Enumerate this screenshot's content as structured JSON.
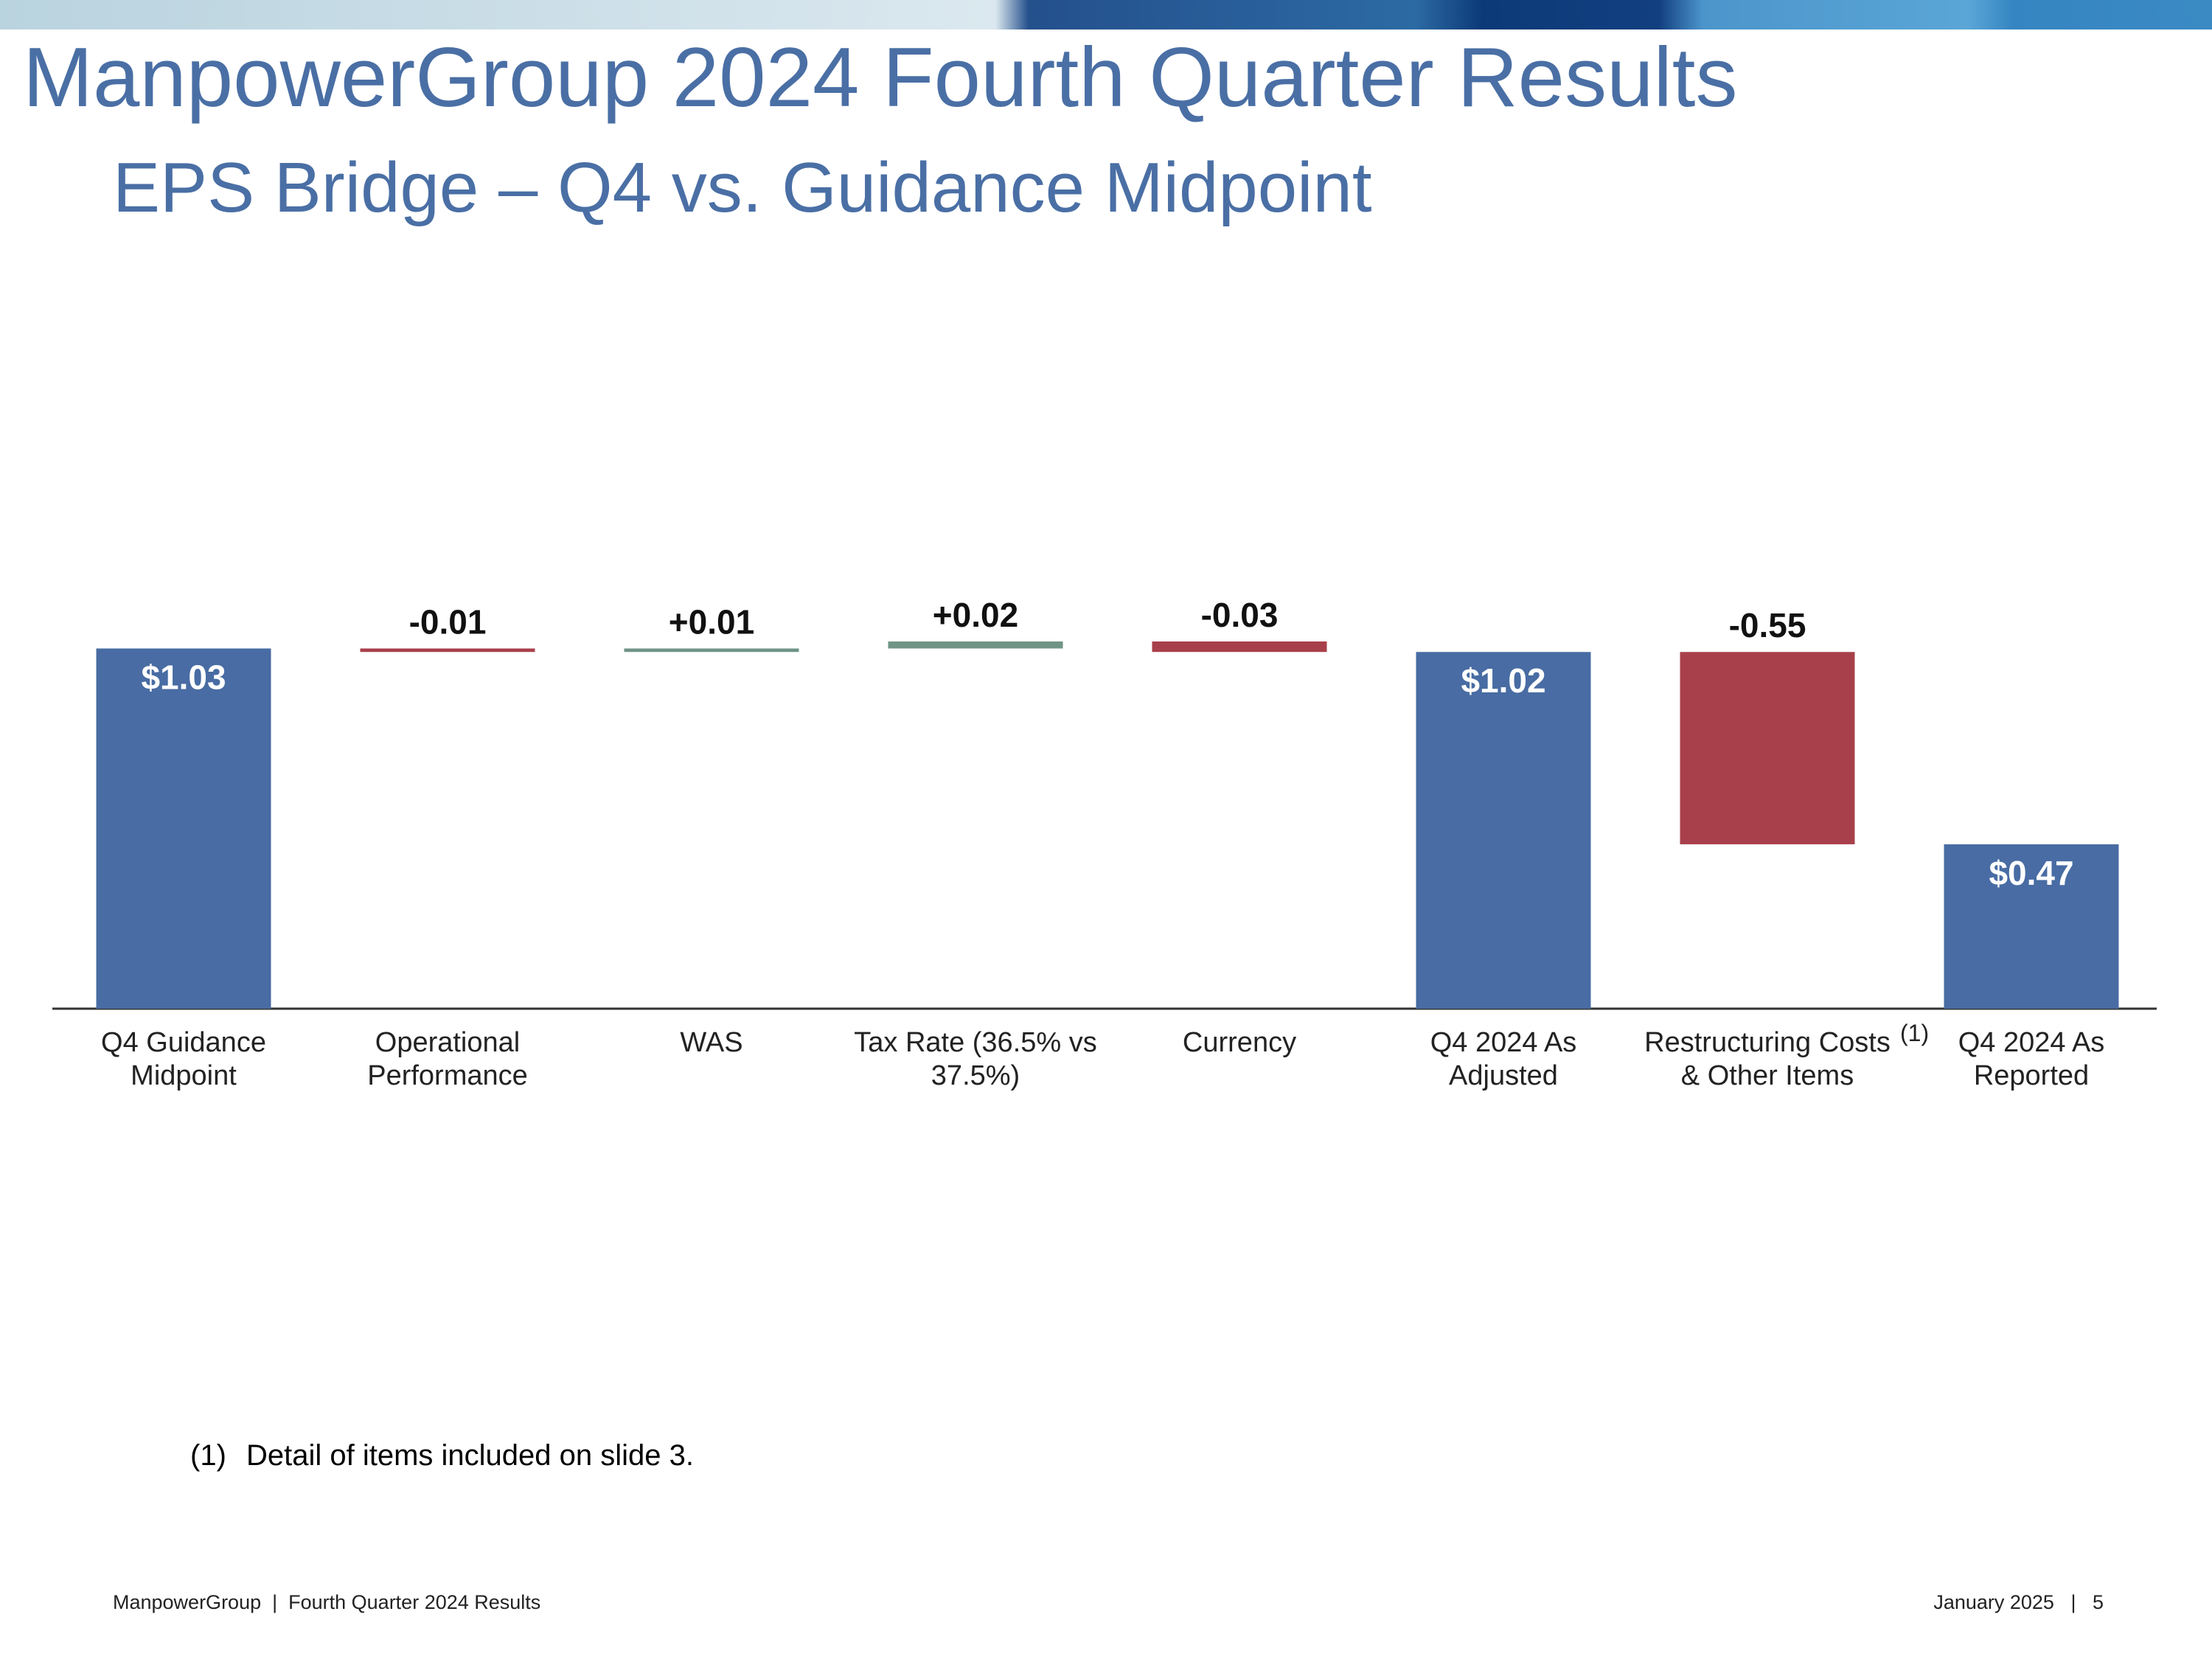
{
  "chart_data": {
    "type": "waterfall",
    "title": "ManpowerGroup 2024 Fourth Quarter Results",
    "subtitle": "EPS Bridge – Q4 vs. Guidance Midpoint",
    "categories": [
      "Q4 Guidance Midpoint",
      "Operational Performance",
      "WAS",
      "Tax Rate (36.5% vs 37.5%)",
      "Currency",
      "Q4 2024 As Adjusted",
      "Restructuring Costs & Other Items",
      "Q4 2024 As Reported"
    ],
    "category_markers": [
      null,
      null,
      null,
      null,
      null,
      null,
      "(1)",
      null
    ],
    "values": [
      1.03,
      -0.01,
      0.01,
      0.02,
      -0.03,
      1.02,
      -0.55,
      0.47
    ],
    "value_labels": [
      "$1.03",
      "-0.01",
      "+0.01",
      "+0.02",
      "-0.03",
      "$1.02",
      "-0.55",
      "$0.47"
    ],
    "is_total": [
      true,
      false,
      false,
      false,
      false,
      true,
      false,
      true
    ],
    "colors": {
      "total": "#486ca3",
      "increase": "#6f9486",
      "decrease": "#a8404b"
    }
  },
  "footnote": {
    "marker": "(1)",
    "text": "Detail of items included on slide 3."
  },
  "footer": {
    "left": "ManpowerGroup  |  Fourth Quarter 2024 Results",
    "right": "January 2025   |   5"
  }
}
